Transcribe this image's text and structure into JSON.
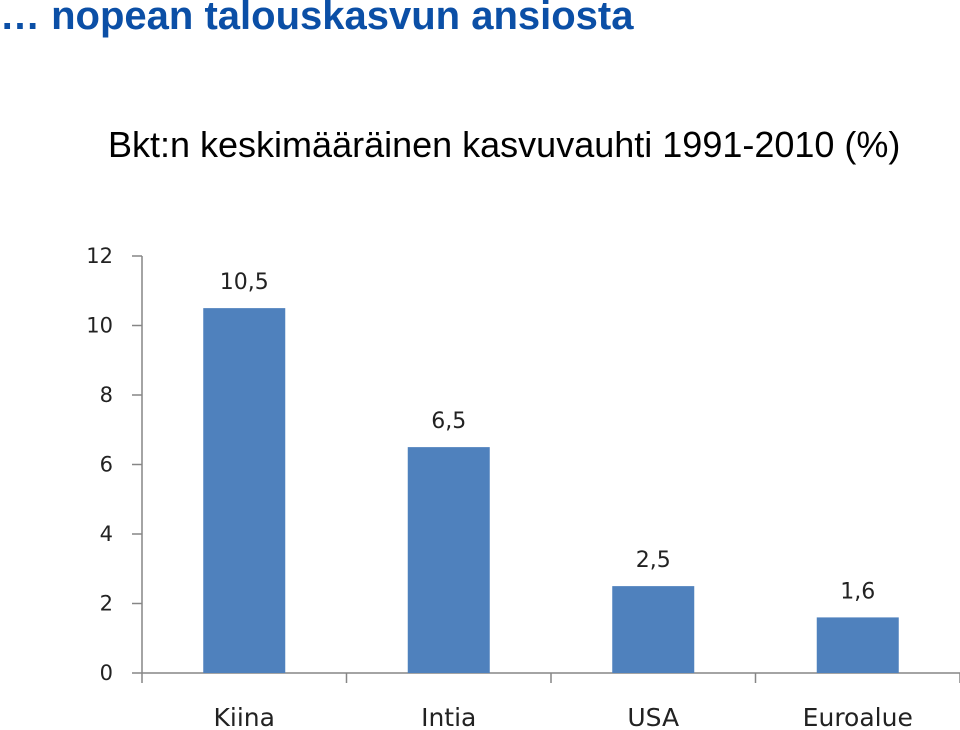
{
  "header": {
    "title": "… nopean talouskasvun ansiosta",
    "subtitle": "Bkt:n keskimääräinen kasvuvauhti 1991-2010 (%)"
  },
  "chart_data": {
    "type": "bar",
    "categories": [
      "Kiina",
      "Intia",
      "USA",
      "Euroalue"
    ],
    "values": [
      10.5,
      6.5,
      2.5,
      1.6
    ],
    "value_labels": [
      "10,5",
      "6,5",
      "2,5",
      "1,6"
    ],
    "ylim": [
      0,
      12
    ],
    "yticks": [
      0,
      2,
      4,
      6,
      8,
      10,
      12
    ],
    "ytick_labels": [
      "0",
      "2",
      "4",
      "6",
      "8",
      "10",
      "12"
    ],
    "grid": false,
    "bar_color": "#4f81bd",
    "axis_color": "#868686"
  }
}
